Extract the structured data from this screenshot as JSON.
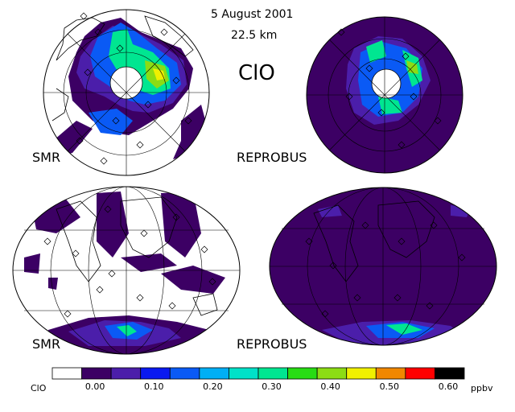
{
  "header": {
    "date": "5 August 2001",
    "altitude": "22.5 km",
    "species": "ClO"
  },
  "panels": [
    {
      "label": "SMR"
    },
    {
      "label": "REPROBUS"
    },
    {
      "label": "SMR"
    },
    {
      "label": "REPROBUS"
    }
  ],
  "colorbar": {
    "name": "ClO",
    "unit": "ppbv",
    "colors": [
      "#ffffff",
      "#3c0064",
      "#4b1eaa",
      "#0a19f0",
      "#0a5af5",
      "#00aff5",
      "#00e1c8",
      "#00e691",
      "#28dc14",
      "#8cdc14",
      "#f0f000",
      "#f08700",
      "#ff0000",
      "#000000"
    ],
    "tick_labels": [
      "0.00",
      "0.10",
      "0.20",
      "0.30",
      "0.40",
      "0.50",
      "0.60"
    ]
  }
}
